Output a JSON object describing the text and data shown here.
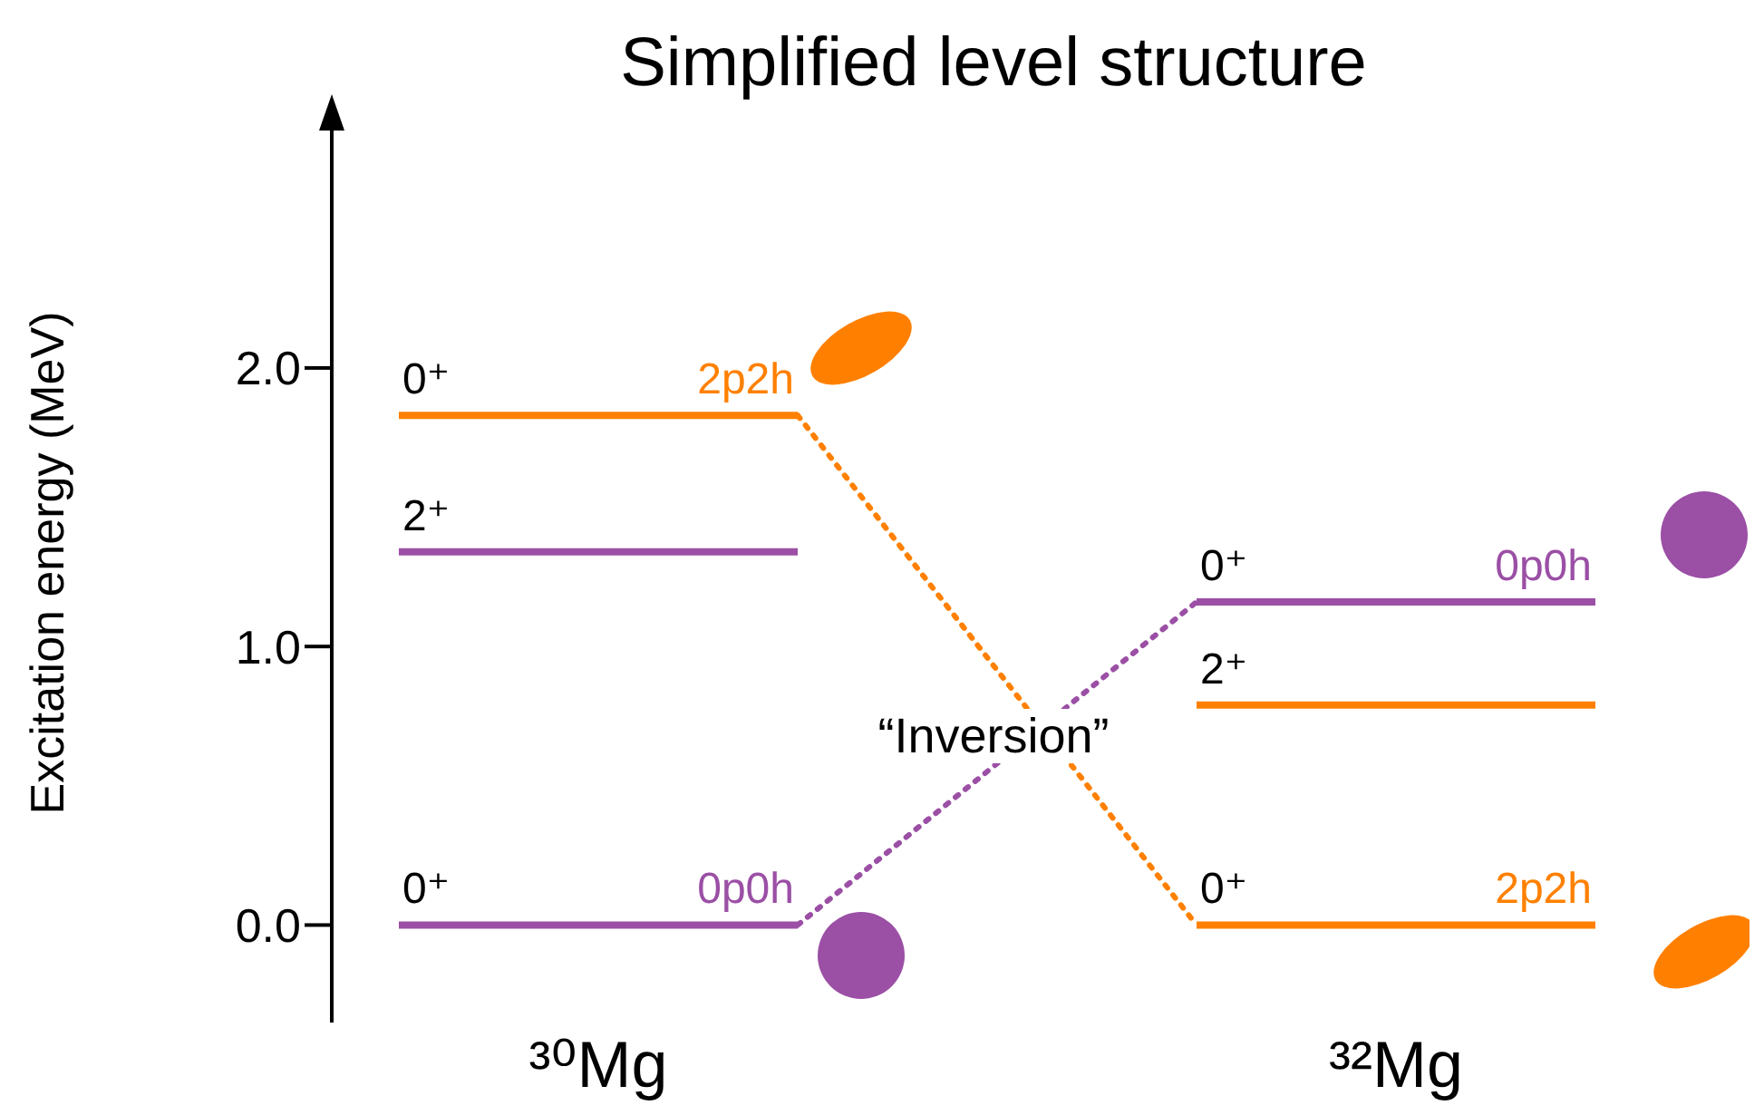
{
  "chart_data": {
    "type": "line",
    "title": "Simplified level structure",
    "ylabel": "Excitation energy (MeV)",
    "categories": [
      null,
      "³⁰Mg",
      null,
      null,
      null,
      "³²Mg",
      null
    ],
    "ylim": [
      -0.35,
      2.95
    ],
    "yticks": [
      {
        "value": 0,
        "label": "0.0"
      },
      {
        "value": 1,
        "label": "1.0"
      },
      {
        "value": 2,
        "label": "2.0"
      }
    ],
    "grid": false,
    "legend": false,
    "marker": "none",
    "series": [
      {
        "name": "0⁺",
        "color": "#ff8000",
        "line_style": "solid",
        "values": [
          1.83,
          1.83,
          1.83,
          null,
          null,
          null,
          null
        ]
      },
      {
        "name": "2⁺",
        "color": "#9b4fa5",
        "line_style": "solid",
        "values": [
          1.34,
          1.34,
          1.34,
          null,
          null,
          null,
          null
        ]
      },
      {
        "name": "0⁺",
        "color": "#9b4fa5",
        "line_style": "solid",
        "values": [
          0,
          0,
          0,
          null,
          null,
          null,
          null
        ]
      },
      {
        "name": "0⁺",
        "color": "#9b4fa5",
        "line_style": "solid",
        "values": [
          null,
          null,
          null,
          null,
          1.16,
          1.16,
          1.16
        ]
      },
      {
        "name": "2⁺",
        "color": "#ff8000",
        "line_style": "solid",
        "values": [
          null,
          null,
          null,
          null,
          0.79,
          0.79,
          0.79
        ]
      },
      {
        "name": "0⁺",
        "color": "#ff8000",
        "line_style": "solid",
        "values": [
          null,
          null,
          null,
          null,
          0,
          0,
          0
        ]
      },
      {
        "color": "#ff8000",
        "line_style": "dotted",
        "values": [
          null,
          null,
          1.83,
          null,
          0,
          null,
          null
        ]
      },
      {
        "color": "#9b4fa5",
        "line_style": "dotted",
        "values": [
          null,
          null,
          0,
          null,
          1.16,
          null,
          null
        ]
      }
    ],
    "annotations": [
      {
        "text": "2p2h",
        "x": "³⁰Mg",
        "y": 1.83
      },
      {
        "text": "0p0h",
        "x": "³⁰Mg",
        "y": 0
      },
      {
        "text": "0p0h",
        "x": "³²Mg",
        "y": 1.16
      },
      {
        "text": "2p2h",
        "x": "³²Mg",
        "y": 0
      },
      "“Inversion”"
    ]
  }
}
